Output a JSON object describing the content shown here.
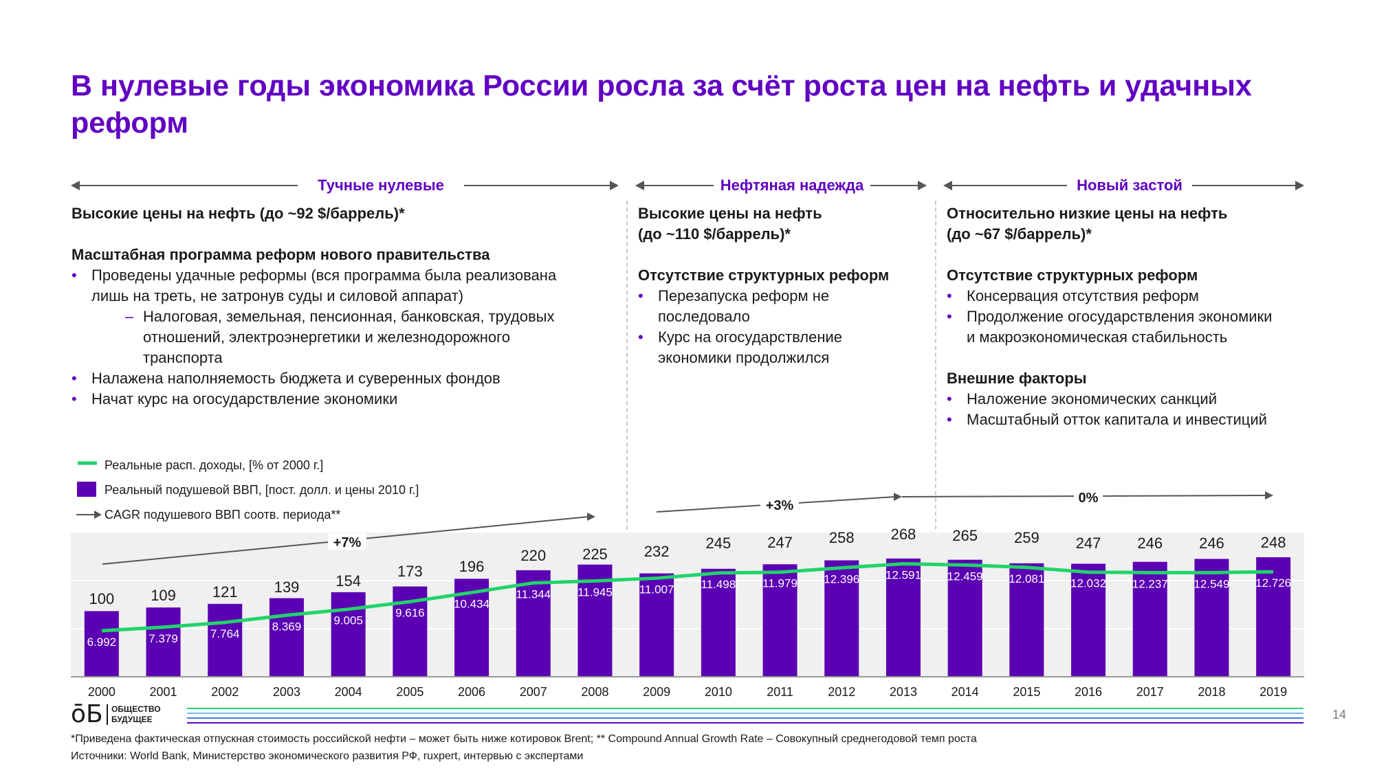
{
  "title": "В нулевые годы экономика России росла за счёт роста цен на нефть и удачных реформ",
  "periods": [
    {
      "title": "Тучные нулевые",
      "oil": "Высокие цены на нефть (до ~92 $/баррель)*",
      "reforms_head": "Масштабная программа реформ нового правительства",
      "bullet1_line1": "Проведены удачные реформы (вся программа была реализована",
      "bullet1_line2": "лишь на треть, не затронув суды и силовой аппарат)",
      "sub1_line1": "Налоговая, земельная, пенсионная, банковская, трудовых",
      "sub1_line2": "отношений, электроэнергетики и железнодорожного",
      "sub1_line3": "транспорта",
      "bullet2": "Налажена наполняемость бюджета и суверенных фондов",
      "bullet3": "Начат курс на огосударствление экономики"
    },
    {
      "title": "Нефтяная надежда",
      "oil_line1": "Высокие цены на нефть",
      "oil_line2": "(до ~110 $/баррель)*",
      "reforms_head": "Отсутствие структурных реформ",
      "bullet1_line1": "Перезапуска реформ не",
      "bullet1_line2": "последовало",
      "bullet2_line1": "Курс на огосударствление",
      "bullet2_line2": "экономики продолжился"
    },
    {
      "title": "Новый застой",
      "oil_line1": "Относительно низкие цены на нефть",
      "oil_line2": "(до ~67 $/баррель)*",
      "reforms_head": "Отсутствие структурных реформ",
      "bullet1": "Консервация отсутствия реформ",
      "bullet2_line1": "Продолжение огосударствления экономики",
      "bullet2_line2": "и макроэкономическая стабильность",
      "external_head": "Внешние факторы",
      "bullet3": "Наложение экономических санкций",
      "bullet4": "Масштабный отток капитала и инвестиций"
    }
  ],
  "legend": {
    "income": "Реальные расп. доходы, [% от 2000 г.]",
    "gdp": "Реальный подушевой ВВП, [пост. долл. и цены 2010 г.]",
    "cagr": "CAGR подушевого ВВП соотв. периода**"
  },
  "colors": {
    "accent": "#6100c2",
    "bar": "#5b00b3",
    "line": "#22d36b",
    "grid": "#f0f0f0"
  },
  "chart_data": {
    "type": "bar",
    "categories": [
      "2000",
      "2001",
      "2002",
      "2003",
      "2004",
      "2005",
      "2006",
      "2007",
      "2008",
      "2009",
      "2010",
      "2011",
      "2012",
      "2013",
      "2014",
      "2015",
      "2016",
      "2017",
      "2018",
      "2019"
    ],
    "series": [
      {
        "name": "Реальный подушевой ВВП, [пост. долл. и цены 2010 г.]",
        "type": "bar",
        "values": [
          6992,
          7379,
          7764,
          8369,
          9005,
          9616,
          10434,
          11344,
          11945,
          11007,
          11498,
          11979,
          12396,
          12591,
          12459,
          12081,
          12032,
          12237,
          12549,
          12726
        ],
        "labels": [
          "6.992",
          "7.379",
          "7.764",
          "8.369",
          "9.005",
          "9.616",
          "10.434",
          "11.344",
          "11.945",
          "11.007",
          "11.498",
          "11.979",
          "12.396",
          "12.591",
          "12.459",
          "12.081",
          "12.032",
          "12.237",
          "12.549",
          "12.726"
        ]
      },
      {
        "name": "Реальные расп. доходы, [% от 2000 г.]",
        "type": "line",
        "values": [
          100,
          109,
          121,
          139,
          154,
          173,
          196,
          220,
          225,
          232,
          245,
          247,
          258,
          268,
          265,
          259,
          247,
          246,
          246,
          248
        ],
        "labels": [
          "100",
          "109",
          "121",
          "139",
          "154",
          "173",
          "196",
          "220",
          "225",
          "232",
          "245",
          "247",
          "258",
          "268",
          "265",
          "259",
          "247",
          "246",
          "246",
          "248"
        ]
      }
    ],
    "annotations": [
      {
        "text": "+7%",
        "from": "2000",
        "to": "2008"
      },
      {
        "text": "+3%",
        "from": "2009",
        "to": "2013"
      },
      {
        "text": "0%",
        "from": "2013",
        "to": "2019"
      }
    ],
    "title": "",
    "xlabel": "",
    "ylabel": ""
  },
  "footer": {
    "logo_mark": "ōБ",
    "logo_line1": "ОБЩЕСТВО",
    "logo_line2": "БУДУЩЕЕ",
    "page_number": "14",
    "footnote": "*Приведена фактическая отпускная стоимость российской нефти – может быть ниже котировок Brent; ** Compound Annual Growth Rate – Совокупный среднегодовой темп роста",
    "sources": "Источники: World Bank, Министерство экономического развития РФ, ruxpert, интервью с экспертами"
  }
}
